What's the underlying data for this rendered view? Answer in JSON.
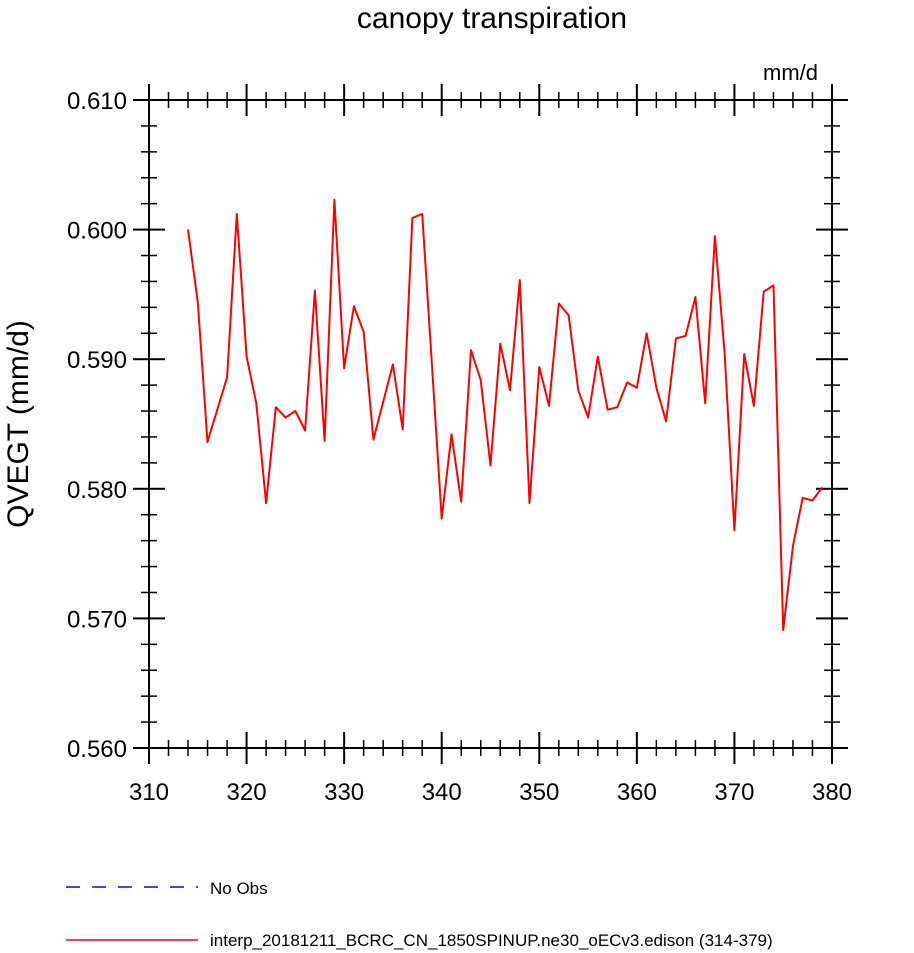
{
  "chart_data": {
    "type": "line",
    "title": "canopy transpiration",
    "units_label": "mm/d",
    "xlabel": "",
    "ylabel": "QVEGT  (mm/d)",
    "xlim": [
      310,
      380
    ],
    "ylim": [
      0.56,
      0.61
    ],
    "x_ticks": [
      310,
      320,
      330,
      340,
      350,
      360,
      370,
      380
    ],
    "x_tick_labels": [
      "310",
      "320",
      "330",
      "340",
      "350",
      "360",
      "370",
      "380"
    ],
    "y_ticks": [
      0.56,
      0.57,
      0.58,
      0.59,
      0.6,
      0.61
    ],
    "y_tick_labels": [
      "0.560",
      "0.570",
      "0.580",
      "0.590",
      "0.600",
      "0.610"
    ],
    "grid": false,
    "legend_position": "bottom-left",
    "colors": {
      "model": "#ff0000",
      "obs": "#0000ff"
    },
    "series": [
      {
        "name": "No Obs",
        "style": "dashed",
        "color": "#0000ff",
        "x": [],
        "values": []
      },
      {
        "name": "interp_20181211_BCRC_CN_1850SPINUP.ne30_oECv3.edison (314-379)",
        "style": "solid",
        "color": "#ff0000",
        "x": [
          314,
          315,
          316,
          317,
          318,
          319,
          320,
          321,
          322,
          323,
          324,
          325,
          326,
          327,
          328,
          329,
          330,
          331,
          332,
          333,
          334,
          335,
          336,
          337,
          338,
          339,
          340,
          341,
          342,
          343,
          344,
          345,
          346,
          347,
          348,
          349,
          350,
          351,
          352,
          353,
          354,
          355,
          356,
          357,
          358,
          359,
          360,
          361,
          362,
          363,
          364,
          365,
          366,
          367,
          368,
          369,
          370,
          371,
          372,
          373,
          374,
          375,
          376,
          377,
          378,
          379
        ],
        "values": [
          0.6,
          0.5944,
          0.5836,
          0.5861,
          0.5886,
          0.6012,
          0.5902,
          0.5866,
          0.5789,
          0.5863,
          0.5855,
          0.586,
          0.5845,
          0.5953,
          0.5837,
          0.6023,
          0.5893,
          0.5941,
          0.5921,
          0.5838,
          0.5867,
          0.5896,
          0.5846,
          0.6009,
          0.6012,
          0.5895,
          0.5777,
          0.5842,
          0.579,
          0.5907,
          0.5884,
          0.5818,
          0.5912,
          0.5876,
          0.5961,
          0.5789,
          0.5894,
          0.5864,
          0.5943,
          0.5934,
          0.5876,
          0.5855,
          0.5902,
          0.5861,
          0.5863,
          0.5882,
          0.5878,
          0.592,
          0.5878,
          0.5852,
          0.5916,
          0.5918,
          0.5948,
          0.5866,
          0.5995,
          0.5904,
          0.5768,
          0.5904,
          0.5864,
          0.5952,
          0.5957,
          0.5691,
          0.5756,
          0.5793,
          0.5791,
          0.5801
        ]
      }
    ]
  }
}
